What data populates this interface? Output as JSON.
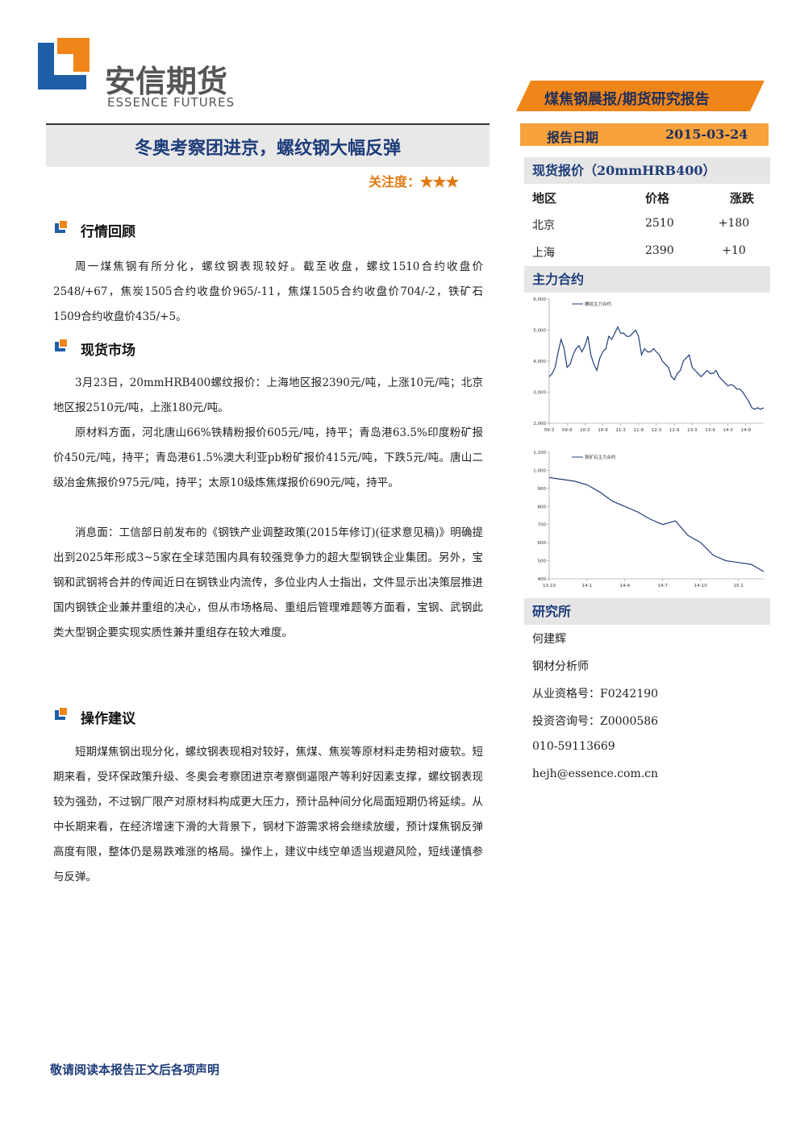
{
  "header": {
    "logo_cn": "安信期货",
    "logo_en": "ESSENCE FUTURES",
    "report_type": "煤焦钢晨报/期货研究报告",
    "date_label": "报告日期",
    "date": "2015-03-24"
  },
  "title": "冬奥考察团进京，螺纹钢大幅反弹",
  "attention": "关注度：★★★",
  "sections": [
    {
      "heading": "行情回顾",
      "paragraphs": [
        "周一煤焦钢有所分化，螺纹钢表现较好。截至收盘，螺纹1510合约收盘价2548/+67，焦炭1505合约收盘价965/-11，焦煤1505合约收盘价704/-2，铁矿石1509合约收盘价435/+5。"
      ]
    },
    {
      "heading": "现货市场",
      "paragraphs": [
        "3月23日，20mmHRB400螺纹报价：上海地区报2390元/吨，上涨10元/吨；北京地区报2510元/吨，上涨180元/吨。",
        "原材料方面，河北唐山66%铁精粉报价605元/吨，持平；青岛港63.5%印度粉矿报价450元/吨，持平；青岛港61.5%澳大利亚pb粉矿报价415元/吨，下跌5元/吨。唐山二级冶金焦报价975元/吨，持平；太原10级炼焦煤报价690元/吨，持平。",
        "消息面：工信部日前发布的《钢铁产业调整政策(2015年修订)(征求意见稿)》明确提出到2025年形成3~5家在全球范围内具有较强竞争力的超大型钢铁企业集团。另外，宝钢和武钢将合并的传闻近日在钢铁业内流传，多位业内人士指出，文件显示出决策层推进国内钢铁企业兼并重组的决心，但从市场格局、重组后管理难题等方面看，宝钢、武钢此类大型钢企要实现实质性兼并重组存在较大难度。"
      ]
    },
    {
      "heading": "操作建议",
      "paragraphs": [
        "短期煤焦钢出现分化，螺纹钢表现相对较好，焦煤、焦炭等原材料走势相对疲软。短期来看，受环保政策升级、冬奥会考察团进京考察倒逼限产等利好因素支撑，螺纹钢表现较为强劲，不过钢厂限产对原材料构成更大压力，预计品种间分化局面短期仍将延续。从中长期来看，在经济增速下滑的大背景下，钢材下游需求将会继续放缓，预计煤焦钢反弹高度有限，整体仍是易跌难涨的格局。操作上，建议中线空单适当规避风险，短线谨慎参与反弹。"
      ]
    }
  ],
  "sidebar": {
    "spot_title": "现货报价（20mmHRB400）",
    "spot_table": {
      "header": [
        "地区",
        "价格",
        "涨跌"
      ],
      "rows": [
        [
          "北京",
          "2510",
          "+180"
        ],
        [
          "上海",
          "2390",
          "+10"
        ]
      ]
    },
    "contracts_title": "主力合约",
    "research_title": "研究所",
    "contacts": [
      "何建辉",
      "钢材分析师",
      "从业资格号：F0242190",
      "投资咨询号：Z0000586",
      "010-59113669",
      "hejh@essence.com.cn"
    ]
  },
  "chart_data": [
    {
      "type": "line",
      "categories": [
        "09-3",
        null,
        null,
        null,
        null,
        null,
        "09-9",
        null,
        null,
        null,
        null,
        null,
        "10-3",
        null,
        null,
        null,
        null,
        null,
        "10-9",
        null,
        null,
        null,
        null,
        null,
        "11-3",
        null,
        null,
        null,
        null,
        null,
        "11-9",
        null,
        null,
        null,
        null,
        null,
        "12-3",
        null,
        null,
        null,
        null,
        null,
        "12-9",
        null,
        null,
        null,
        null,
        null,
        "13-3",
        null,
        null,
        null,
        null,
        null,
        "13-9",
        null,
        null,
        null,
        null,
        null,
        "14-3",
        null,
        null,
        null,
        null,
        null,
        "14-9",
        null,
        null,
        null,
        null,
        null,
        null
      ],
      "series": [
        {
          "name": "螺纹主力合约",
          "color": "#1f3d7a",
          "values": [
            3500,
            3600,
            3800,
            4300,
            4700,
            4400,
            3800,
            3900,
            4200,
            4400,
            4500,
            4300,
            4500,
            4800,
            4200,
            3900,
            3700,
            4100,
            4300,
            4400,
            4800,
            4700,
            4900,
            5100,
            4900,
            4900,
            4800,
            4800,
            4900,
            5000,
            4800,
            4200,
            4400,
            4300,
            4300,
            4400,
            4300,
            4200,
            4000,
            3900,
            3800,
            3500,
            3400,
            3600,
            3700,
            4000,
            4100,
            4200,
            3800,
            3700,
            3600,
            3500,
            3600,
            3700,
            3600,
            3600,
            3700,
            3500,
            3400,
            3300,
            3200,
            3250,
            3200,
            3100,
            3100,
            3000,
            2850,
            2700,
            2500,
            2450,
            2500,
            2450,
            2500
          ]
        }
      ],
      "ylim": [
        2000,
        6000
      ],
      "yticks": [
        {
          "value": 2000,
          "label": "2,000"
        },
        {
          "value": 3000,
          "label": "3,000"
        },
        {
          "value": 4000,
          "label": "4,000"
        },
        {
          "value": 5000,
          "label": "5,000"
        },
        {
          "value": 6000,
          "label": "6,000"
        }
      ]
    },
    {
      "type": "line",
      "categories": [
        "13-10",
        null,
        null,
        "14-1",
        null,
        null,
        "14-4",
        null,
        null,
        "14-7",
        null,
        null,
        "14-10",
        null,
        null,
        "15-1",
        null,
        null
      ],
      "series": [
        {
          "name": "铁矿石主力合约",
          "color": "#1f3d7a",
          "values": [
            960,
            950,
            940,
            920,
            880,
            830,
            800,
            770,
            730,
            700,
            720,
            640,
            600,
            530,
            500,
            490,
            480,
            440
          ]
        }
      ],
      "ylim": [
        400,
        1100
      ],
      "yticks": [
        400,
        500,
        600,
        700,
        800,
        900,
        {
          "value": 1000,
          "label": "1,000"
        },
        {
          "value": 1100,
          "label": "1,100"
        }
      ]
    }
  ],
  "footer": "敬请阅读本报告正文后各项声明"
}
